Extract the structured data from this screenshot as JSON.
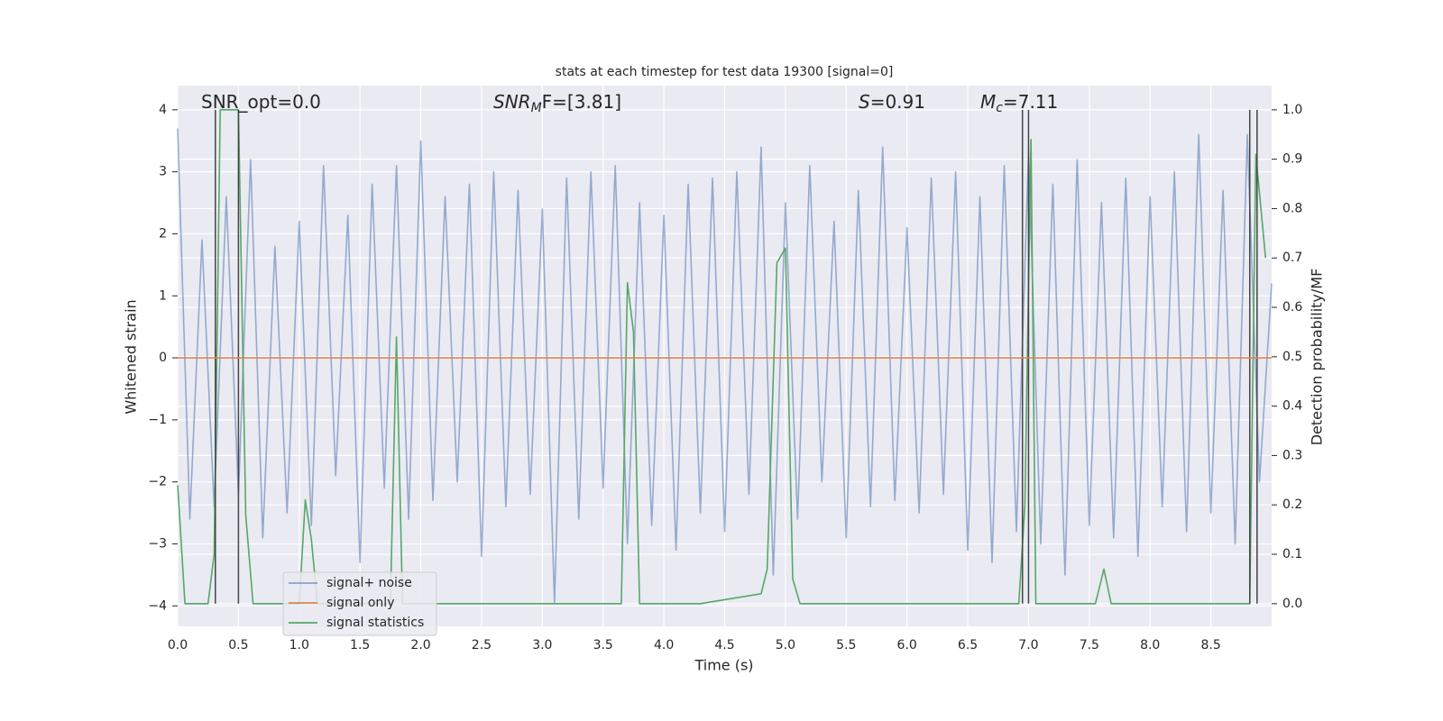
{
  "chart_data": {
    "type": "line",
    "title": "stats at each timestep for test data 19300 [signal=0]",
    "xlabel": "Time (s)",
    "ylabel": "Whitened strain",
    "y2label": "Detection probability/MF",
    "xlim": [
      0,
      9.0
    ],
    "ylim": [
      -4.33,
      4.39
    ],
    "y2lim": [
      -0.046,
      1.049
    ],
    "xticks": [
      {
        "value": 0,
        "label": "0.0"
      },
      0.5,
      {
        "value": 1,
        "label": "1.0"
      },
      1.5,
      {
        "value": 2,
        "label": "2.0"
      },
      2.5,
      {
        "value": 3,
        "label": "3.0"
      },
      3.5,
      {
        "value": 4,
        "label": "4.0"
      },
      4.5,
      {
        "value": 5,
        "label": "5.0"
      },
      5.5,
      {
        "value": 6,
        "label": "6.0"
      },
      6.5,
      {
        "value": 7,
        "label": "7.0"
      },
      7.5,
      {
        "value": 8,
        "label": "8.0"
      },
      8.5
    ],
    "yticks": [
      {
        "value": -4,
        "label": "−4"
      },
      {
        "value": -3,
        "label": "−3"
      },
      {
        "value": -2,
        "label": "−2"
      },
      {
        "value": -1,
        "label": "−1"
      },
      0,
      1,
      2,
      3,
      4
    ],
    "y2ticks": [
      {
        "value": 0,
        "label": "0.0"
      },
      0.1,
      0.2,
      0.3,
      0.4,
      0.5,
      0.6,
      0.7,
      0.8,
      0.9,
      {
        "value": 1,
        "label": "1.0"
      }
    ],
    "grid": true,
    "legend": "lower left",
    "series": [
      {
        "name": "signal+ noise",
        "color": "#4c72b0",
        "x": [
          0.0,
          0.1,
          0.2,
          0.3,
          0.4,
          0.5,
          0.6,
          0.7,
          0.8,
          0.9,
          1.0,
          1.1,
          1.2,
          1.3,
          1.4,
          1.5,
          1.6,
          1.7,
          1.8,
          1.9,
          2.0,
          2.1,
          2.2,
          2.3,
          2.4,
          2.5,
          2.6,
          2.7,
          2.8,
          2.9,
          3.0,
          3.1,
          3.2,
          3.3,
          3.4,
          3.5,
          3.6,
          3.7,
          3.8,
          3.9,
          4.0,
          4.1,
          4.2,
          4.3,
          4.4,
          4.5,
          4.6,
          4.7,
          4.8,
          4.9,
          5.0,
          5.1,
          5.2,
          5.3,
          5.4,
          5.5,
          5.6,
          5.7,
          5.8,
          5.9,
          6.0,
          6.1,
          6.2,
          6.3,
          6.4,
          6.5,
          6.6,
          6.7,
          6.8,
          6.9,
          7.0,
          7.1,
          7.2,
          7.3,
          7.4,
          7.5,
          7.6,
          7.7,
          7.8,
          7.9,
          8.0,
          8.1,
          8.2,
          8.3,
          8.4,
          8.5,
          8.6,
          8.7,
          8.8,
          8.9,
          9.0
        ],
        "values": [
          3.7,
          -2.6,
          1.9,
          -2.4,
          2.6,
          -2.2,
          3.2,
          -2.9,
          1.8,
          -2.5,
          2.2,
          -2.7,
          3.1,
          -1.9,
          2.3,
          -3.3,
          2.8,
          -2.1,
          3.1,
          -2.6,
          3.5,
          -2.3,
          2.6,
          -2.0,
          2.8,
          -3.2,
          3.0,
          -2.4,
          2.7,
          -2.2,
          2.4,
          -3.95,
          2.9,
          -2.6,
          3.0,
          -2.1,
          3.1,
          -3.0,
          2.5,
          -2.7,
          2.3,
          -3.1,
          2.8,
          -2.5,
          2.9,
          -2.8,
          3.0,
          -2.2,
          3.4,
          -3.5,
          2.5,
          -2.6,
          3.1,
          -2.0,
          2.2,
          -2.9,
          2.7,
          -2.4,
          3.4,
          -2.3,
          2.1,
          -2.5,
          2.9,
          -2.2,
          3.0,
          -3.1,
          2.6,
          -3.3,
          3.1,
          -2.8,
          3.3,
          -3.0,
          2.8,
          -3.5,
          3.2,
          -2.7,
          2.5,
          -2.9,
          2.9,
          -3.2,
          2.6,
          -2.4,
          3.0,
          -2.8,
          3.6,
          -2.5,
          2.7,
          -3.0,
          3.6,
          -2.0,
          1.2
        ]
      },
      {
        "name": "signal only",
        "color": "#dd8452",
        "x": [
          0.0,
          9.0
        ],
        "values": [
          0,
          0
        ]
      },
      {
        "name": "signal statistics",
        "color": "#55a868",
        "axis": "y2",
        "x": [
          0,
          0.06,
          0.25,
          0.3,
          0.35,
          0.5,
          0.56,
          0.62,
          0.75,
          1.0,
          1.05,
          1.1,
          1.15,
          1.75,
          1.8,
          1.85,
          3.65,
          3.7,
          3.75,
          3.8,
          4.3,
          4.8,
          4.85,
          4.93,
          5.0,
          5.06,
          5.12,
          6.92,
          6.97,
          7.02,
          7.06,
          7.55,
          7.62,
          7.68,
          8.82,
          8.87,
          8.95
        ],
        "values": [
          0.24,
          0.0,
          0.0,
          0.1,
          1.0,
          1.0,
          0.18,
          0.0,
          0.0,
          0.0,
          0.21,
          0.13,
          0.0,
          0.0,
          0.54,
          0.0,
          0.0,
          0.65,
          0.55,
          0.0,
          0.0,
          0.02,
          0.07,
          0.69,
          0.72,
          0.05,
          0.0,
          0.0,
          0.2,
          0.94,
          0.0,
          0.0,
          0.07,
          0.0,
          0.0,
          0.91,
          0.7
        ]
      }
    ],
    "vlines": {
      "color": "#444444",
      "x": [
        0.31,
        0.5,
        6.95,
        7.0,
        8.82,
        8.88
      ]
    },
    "annotations": [
      {
        "text": "SNR_opt=0.0"
      },
      {
        "main": "SNR",
        "sub": "M",
        "rest": "F=[3.81]"
      },
      {
        "main": "S",
        "rest": "=0.91"
      },
      {
        "main": "M",
        "sub": "c",
        "rest": "=7.11"
      }
    ]
  }
}
